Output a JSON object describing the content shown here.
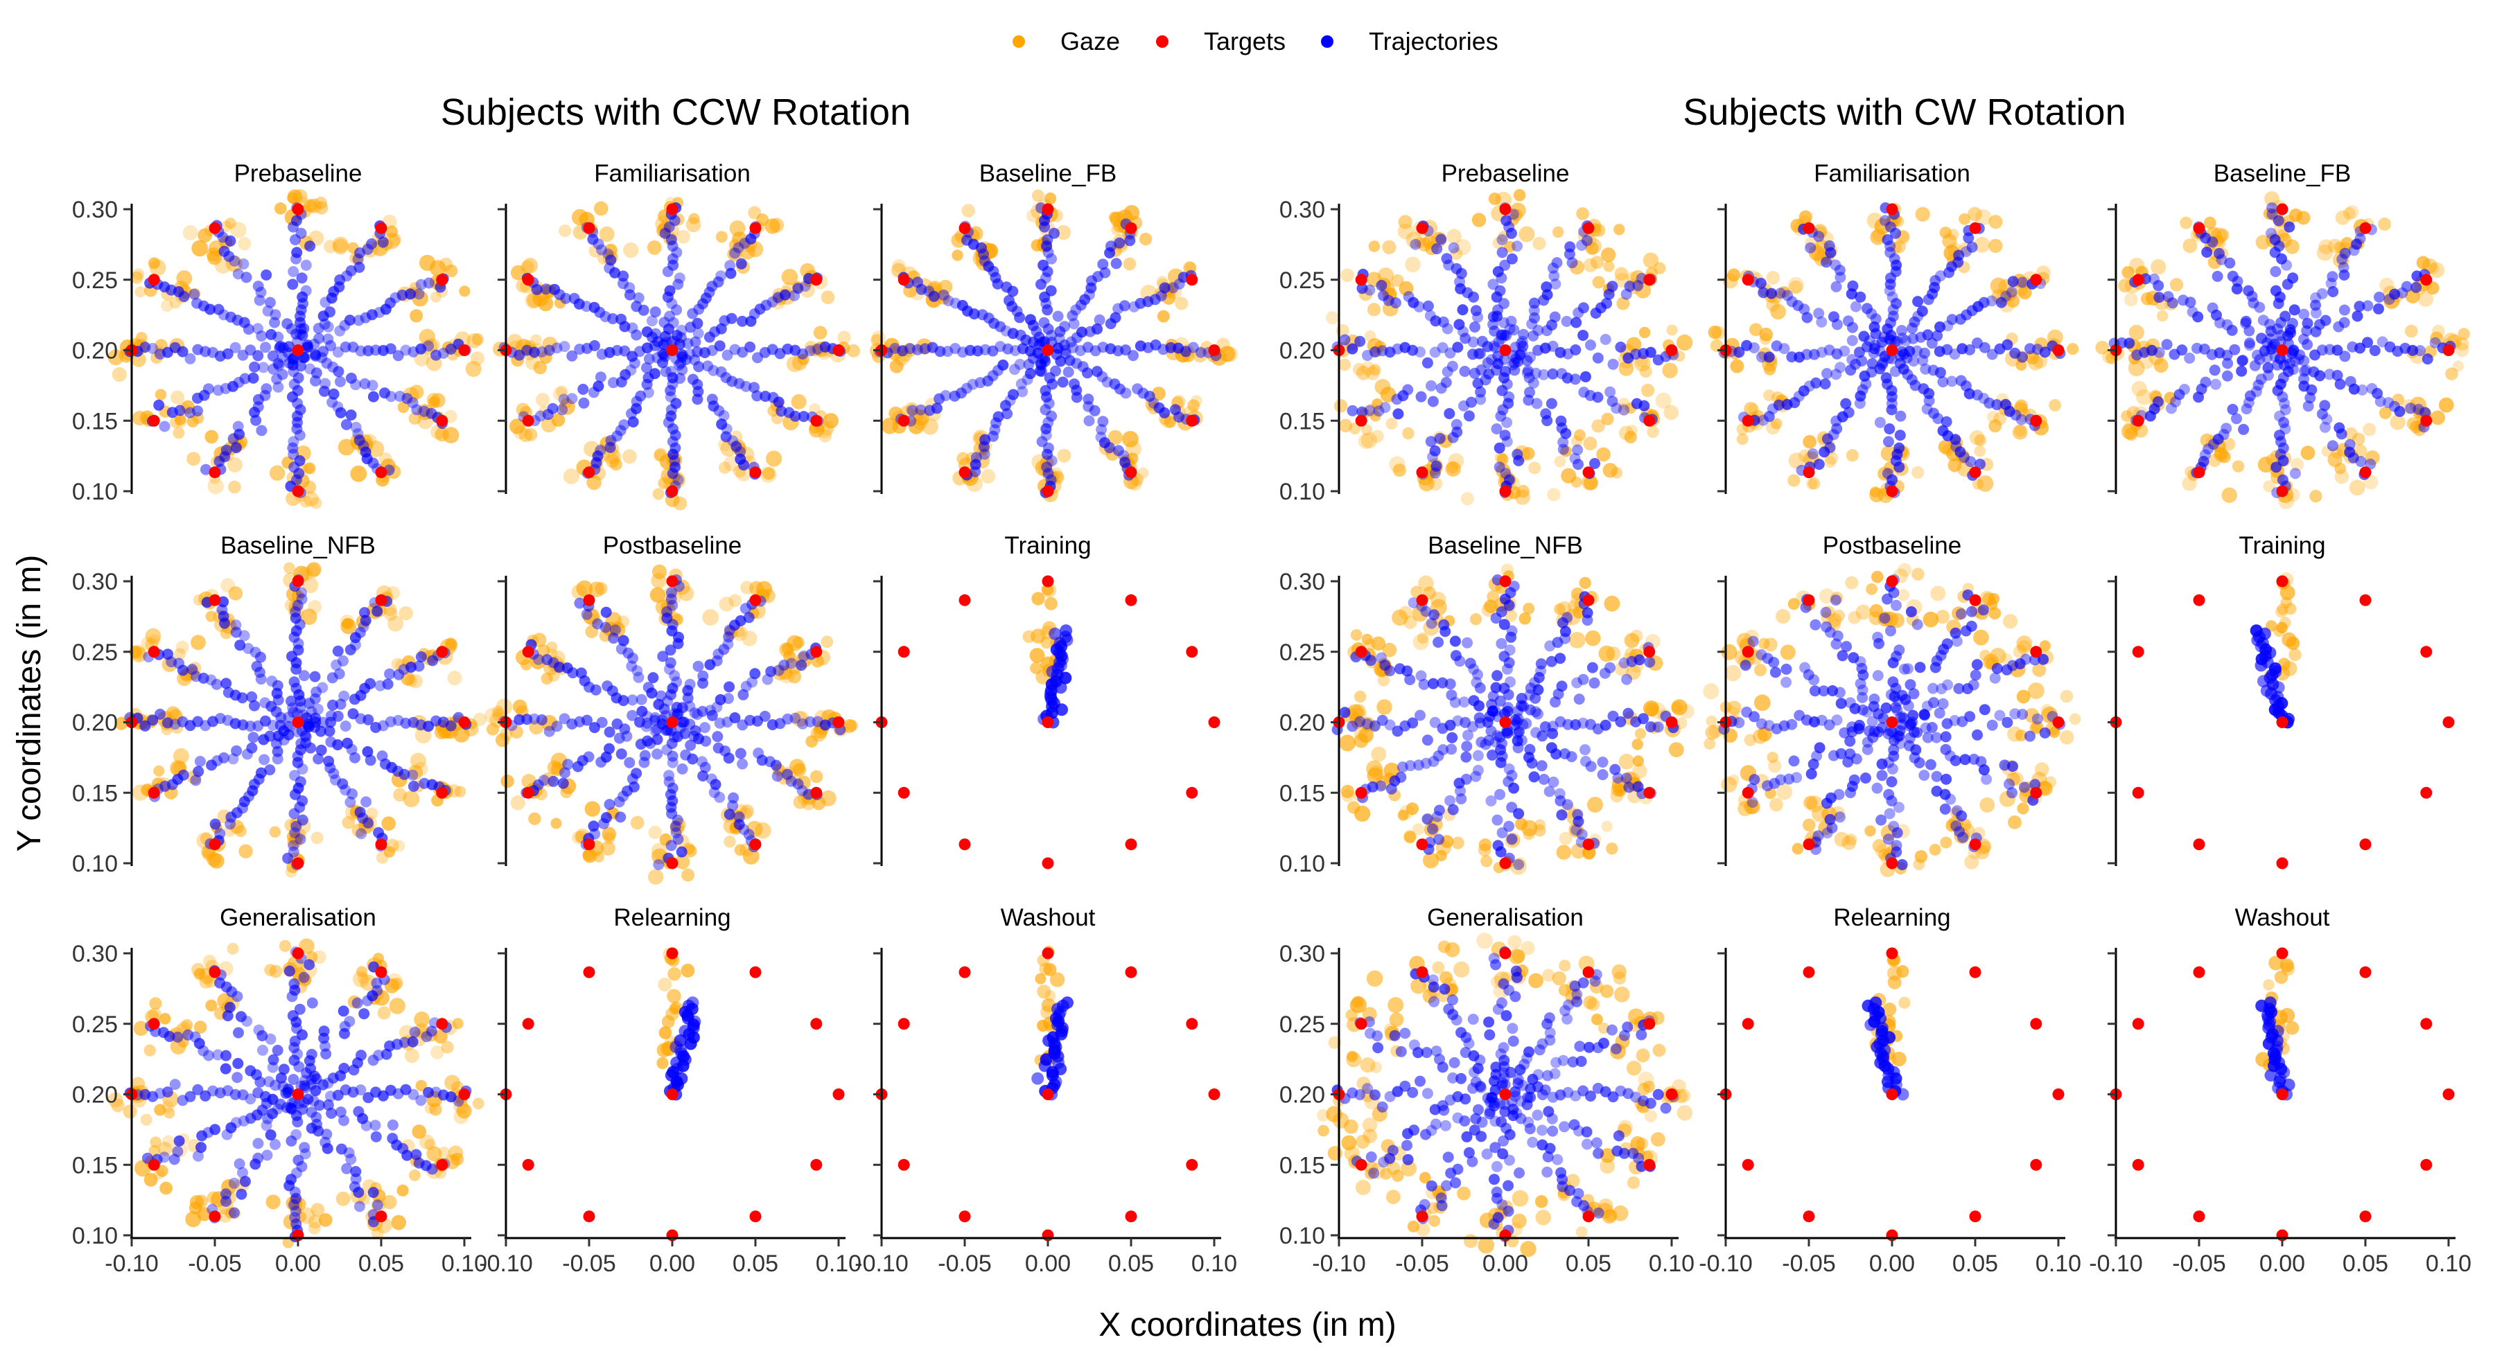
{
  "chart_data": {
    "type": "scatter",
    "legend": {
      "position": "top",
      "items": [
        {
          "name": "Gaze",
          "color": "#FFA500"
        },
        {
          "name": "Targets",
          "color": "#FF0000"
        },
        {
          "name": "Trajectories",
          "color": "#0000FF"
        }
      ]
    },
    "xlabel": "X coordinates (in m)",
    "ylabel": "Y coordinates (in m)",
    "xlim": [
      -0.1,
      0.1
    ],
    "ylim": [
      0.1,
      0.3
    ],
    "x_ticks": [
      "-0.10",
      "-0.05",
      "0.00",
      "0.05",
      "0.10"
    ],
    "y_ticks": [
      "0.30",
      "0.25",
      "0.20",
      "0.15",
      "0.10"
    ],
    "grid": false,
    "targets": [
      {
        "x": 0.0,
        "y": 0.3
      },
      {
        "x": 0.05,
        "y": 0.2866
      },
      {
        "x": 0.0866,
        "y": 0.25
      },
      {
        "x": 0.1,
        "y": 0.2
      },
      {
        "x": 0.0866,
        "y": 0.15
      },
      {
        "x": 0.05,
        "y": 0.1134
      },
      {
        "x": 0.0,
        "y": 0.1
      },
      {
        "x": -0.05,
        "y": 0.1134
      },
      {
        "x": -0.0866,
        "y": 0.15
      },
      {
        "x": -0.1,
        "y": 0.2
      },
      {
        "x": -0.0866,
        "y": 0.25
      },
      {
        "x": -0.05,
        "y": 0.2866
      }
    ],
    "origin": {
      "x": 0.0,
      "y": 0.2
    },
    "groups": [
      {
        "title": "Subjects with CCW Rotation",
        "panels": [
          {
            "title": "Prebaseline",
            "pattern": "all_targets",
            "spread": 0.6
          },
          {
            "title": "Familiarisation",
            "pattern": "all_targets",
            "spread": 0.5
          },
          {
            "title": "Baseline_FB",
            "pattern": "all_targets",
            "spread": 0.45
          },
          {
            "title": "Baseline_NFB",
            "pattern": "all_targets",
            "spread": 0.55
          },
          {
            "title": "Postbaseline",
            "pattern": "all_targets",
            "spread": 0.6
          },
          {
            "title": "Training",
            "pattern": "single_target",
            "lean": 0.01
          },
          {
            "title": "Generalisation",
            "pattern": "all_targets",
            "spread": 0.75
          },
          {
            "title": "Relearning",
            "pattern": "single_target",
            "lean": 0.012
          },
          {
            "title": "Washout",
            "pattern": "single_target",
            "lean": 0.008
          }
        ]
      },
      {
        "title": "Subjects with CW Rotation",
        "panels": [
          {
            "title": "Prebaseline",
            "pattern": "all_targets",
            "spread": 0.9
          },
          {
            "title": "Familiarisation",
            "pattern": "all_targets",
            "spread": 0.6
          },
          {
            "title": "Baseline_FB",
            "pattern": "all_targets",
            "spread": 0.7
          },
          {
            "title": "Baseline_NFB",
            "pattern": "all_targets",
            "spread": 0.85
          },
          {
            "title": "Postbaseline",
            "pattern": "all_targets",
            "spread": 1.0
          },
          {
            "title": "Training",
            "pattern": "single_target",
            "lean": -0.014
          },
          {
            "title": "Generalisation",
            "pattern": "all_targets",
            "spread": 0.95
          },
          {
            "title": "Relearning",
            "pattern": "single_target",
            "lean": -0.012
          },
          {
            "title": "Washout",
            "pattern": "single_target",
            "lean": -0.01
          }
        ]
      }
    ]
  }
}
